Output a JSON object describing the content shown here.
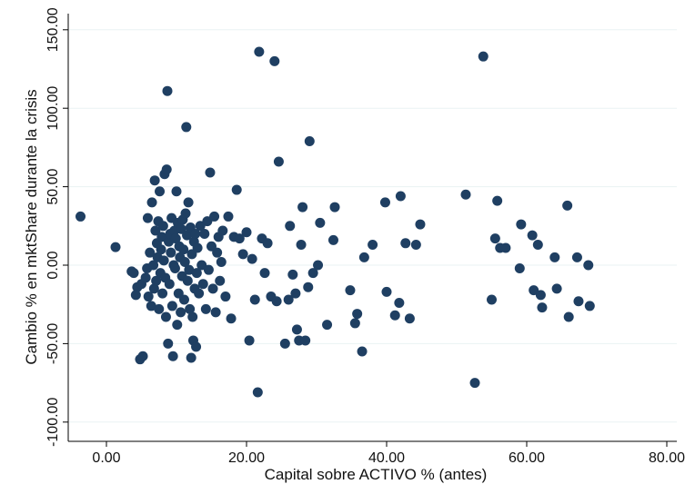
{
  "chart_data": {
    "type": "scatter",
    "xlabel": "Capital sobre ACTIVO % (antes)",
    "ylabel": "Cambio % en mktShare durante la crisis",
    "xlim": [
      -5,
      80
    ],
    "ylim": [
      -100,
      150
    ],
    "x_ticks": [
      0,
      20,
      40,
      60,
      80
    ],
    "x_tick_labels": [
      "0.00",
      "20.00",
      "40.00",
      "60.00",
      "80.00"
    ],
    "y_ticks": [
      -100,
      -50,
      0,
      50,
      100,
      150
    ],
    "y_tick_labels": [
      "-100.00",
      "-50.00",
      "0.00",
      "50.00",
      "100.00",
      "150.00"
    ],
    "grid": "horizontal",
    "colors": {
      "point": "#1f3f62",
      "grid": "#eaf2f3",
      "axis": "#000000",
      "background": "#ffffff"
    },
    "series": [
      {
        "points": [
          [
            -3.7,
            31
          ],
          [
            1.3,
            11.5
          ],
          [
            3.6,
            -4
          ],
          [
            3.9,
            -5
          ],
          [
            4.2,
            -19
          ],
          [
            4.4,
            -14
          ],
          [
            4.8,
            -60
          ],
          [
            5.2,
            -58
          ],
          [
            5.0,
            -12
          ],
          [
            5.6,
            -8
          ],
          [
            5.8,
            -2
          ],
          [
            5.9,
            30
          ],
          [
            6.0,
            -20
          ],
          [
            6.2,
            8
          ],
          [
            6.4,
            -26
          ],
          [
            6.5,
            40
          ],
          [
            6.7,
            0
          ],
          [
            6.8,
            -15
          ],
          [
            6.9,
            54
          ],
          [
            7.0,
            22
          ],
          [
            7.1,
            -10
          ],
          [
            7.2,
            14
          ],
          [
            7.3,
            5
          ],
          [
            7.4,
            28
          ],
          [
            7.5,
            -28
          ],
          [
            7.6,
            47
          ],
          [
            7.7,
            -5
          ],
          [
            7.8,
            10
          ],
          [
            7.9,
            18
          ],
          [
            8.0,
            -18
          ],
          [
            8.1,
            25
          ],
          [
            8.2,
            3
          ],
          [
            8.3,
            58
          ],
          [
            8.4,
            -8
          ],
          [
            8.5,
            -33
          ],
          [
            8.6,
            61
          ],
          [
            8.7,
            111
          ],
          [
            8.8,
            -50
          ],
          [
            8.9,
            15
          ],
          [
            9.0,
            -12
          ],
          [
            9.1,
            20
          ],
          [
            9.2,
            8
          ],
          [
            9.3,
            30
          ],
          [
            9.4,
            -26
          ],
          [
            9.5,
            -58
          ],
          [
            9.6,
            0
          ],
          [
            9.7,
            22
          ],
          [
            9.8,
            -2
          ],
          [
            9.9,
            17
          ],
          [
            10.0,
            47
          ],
          [
            10.1,
            -38
          ],
          [
            10.2,
            27
          ],
          [
            10.3,
            -18
          ],
          [
            10.4,
            12
          ],
          [
            10.5,
            5
          ],
          [
            10.6,
            -30
          ],
          [
            10.7,
            23
          ],
          [
            10.8,
            -7
          ],
          [
            10.9,
            29
          ],
          [
            11.0,
            10
          ],
          [
            11.1,
            -22
          ],
          [
            11.2,
            2
          ],
          [
            11.3,
            33
          ],
          [
            11.4,
            88
          ],
          [
            11.5,
            19
          ],
          [
            11.6,
            -10
          ],
          [
            11.7,
            40
          ],
          [
            11.8,
            -3
          ],
          [
            11.9,
            -28
          ],
          [
            12.0,
            24
          ],
          [
            12.1,
            -59
          ],
          [
            12.2,
            7
          ],
          [
            12.3,
            -33
          ],
          [
            12.4,
            -48
          ],
          [
            12.5,
            15
          ],
          [
            12.6,
            -15
          ],
          [
            12.7,
            20
          ],
          [
            12.8,
            -52
          ],
          [
            12.9,
            -5
          ],
          [
            13.0,
            11
          ],
          [
            13.2,
            -18
          ],
          [
            13.4,
            25
          ],
          [
            13.6,
            0
          ],
          [
            13.8,
            -12
          ],
          [
            14.0,
            20
          ],
          [
            14.2,
            -28
          ],
          [
            14.4,
            28
          ],
          [
            14.6,
            -3
          ],
          [
            14.8,
            59
          ],
          [
            15.0,
            12
          ],
          [
            15.2,
            -15
          ],
          [
            15.4,
            31
          ],
          [
            15.6,
            -30
          ],
          [
            15.8,
            8
          ],
          [
            16.0,
            18
          ],
          [
            16.2,
            -10
          ],
          [
            16.4,
            2
          ],
          [
            16.6,
            22
          ],
          [
            17.0,
            -20
          ],
          [
            17.4,
            31
          ],
          [
            17.8,
            -34
          ],
          [
            18.2,
            18
          ],
          [
            18.6,
            48
          ],
          [
            19.0,
            17
          ],
          [
            19.5,
            7
          ],
          [
            20.0,
            21
          ],
          [
            20.4,
            -48
          ],
          [
            20.8,
            4
          ],
          [
            21.2,
            -22
          ],
          [
            21.6,
            -81
          ],
          [
            21.8,
            136
          ],
          [
            22.2,
            17
          ],
          [
            22.6,
            -5
          ],
          [
            23.0,
            14
          ],
          [
            23.5,
            -20
          ],
          [
            24.0,
            130
          ],
          [
            24.3,
            -23
          ],
          [
            24.6,
            66
          ],
          [
            25.5,
            -50
          ],
          [
            26.0,
            -22
          ],
          [
            26.2,
            25
          ],
          [
            26.6,
            -6
          ],
          [
            27.0,
            -18
          ],
          [
            27.2,
            -41
          ],
          [
            27.5,
            -48
          ],
          [
            27.8,
            13
          ],
          [
            28.0,
            37
          ],
          [
            28.4,
            -48
          ],
          [
            28.8,
            -14
          ],
          [
            29.0,
            79
          ],
          [
            29.5,
            -5
          ],
          [
            30.2,
            0
          ],
          [
            30.5,
            27
          ],
          [
            31.5,
            -38
          ],
          [
            32.4,
            16
          ],
          [
            32.6,
            37
          ],
          [
            34.8,
            -16
          ],
          [
            35.5,
            -37
          ],
          [
            35.8,
            -31
          ],
          [
            36.5,
            -55
          ],
          [
            36.8,
            5
          ],
          [
            38.0,
            13
          ],
          [
            39.8,
            40
          ],
          [
            40.0,
            -17
          ],
          [
            41.2,
            -32
          ],
          [
            41.8,
            -24
          ],
          [
            42.0,
            44
          ],
          [
            42.7,
            14
          ],
          [
            43.3,
            -34
          ],
          [
            44.2,
            13
          ],
          [
            44.8,
            26
          ],
          [
            51.3,
            45
          ],
          [
            52.6,
            -75
          ],
          [
            55.0,
            -22
          ],
          [
            55.5,
            17
          ],
          [
            55.8,
            41
          ],
          [
            56.2,
            11
          ],
          [
            57.0,
            11
          ],
          [
            59.0,
            -2
          ],
          [
            59.2,
            26
          ],
          [
            60.8,
            19
          ],
          [
            61.0,
            -16
          ],
          [
            61.6,
            13
          ],
          [
            62.0,
            -19
          ],
          [
            62.2,
            -27
          ],
          [
            64.0,
            5
          ],
          [
            64.3,
            -15
          ],
          [
            65.8,
            38
          ],
          [
            66.0,
            -33
          ],
          [
            67.2,
            5
          ],
          [
            67.4,
            -23
          ],
          [
            68.8,
            0
          ],
          [
            69.0,
            -26
          ],
          [
            53.8,
            133
          ]
        ]
      }
    ]
  }
}
